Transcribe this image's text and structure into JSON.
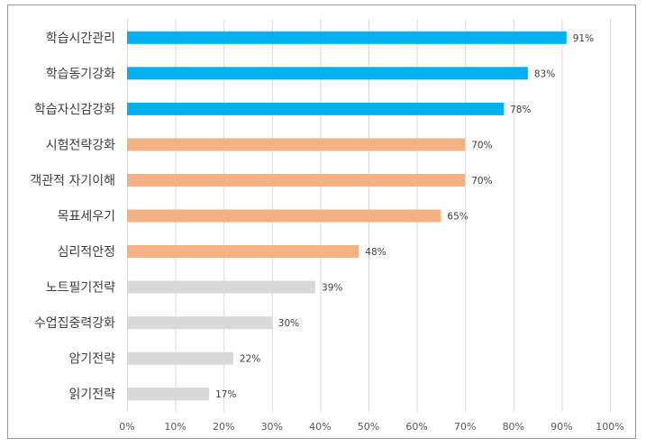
{
  "chart_data": {
    "type": "bar",
    "orientation": "horizontal",
    "categories": [
      "학습시간관리",
      "학습동기강화",
      "학습자신감강화",
      "시험전략강화",
      "객관적 자기이해",
      "목표세우기",
      "심리적안정",
      "노트필기전략",
      "수업집중력강화",
      "암기전략",
      "읽기전략"
    ],
    "values": [
      91,
      83,
      78,
      70,
      70,
      65,
      48,
      39,
      30,
      22,
      17
    ],
    "value_labels": [
      "91%",
      "83%",
      "78%",
      "70%",
      "70%",
      "65%",
      "48%",
      "39%",
      "30%",
      "22%",
      "17%"
    ],
    "bar_colors": [
      "#00b0f0",
      "#00b0f0",
      "#00b0f0",
      "#f4b183",
      "#f4b183",
      "#f4b183",
      "#f4b183",
      "#d9d9d9",
      "#d9d9d9",
      "#d9d9d9",
      "#d9d9d9"
    ],
    "xlim": [
      0,
      100
    ],
    "x_ticks": [
      0,
      10,
      20,
      30,
      40,
      50,
      60,
      70,
      80,
      90,
      100
    ],
    "x_tick_labels": [
      "0%",
      "10%",
      "20%",
      "30%",
      "40%",
      "50%",
      "60%",
      "70%",
      "80%",
      "90%",
      "100%"
    ],
    "grid": "vertical",
    "legend": "none",
    "title": "",
    "xlabel": "",
    "ylabel": ""
  }
}
